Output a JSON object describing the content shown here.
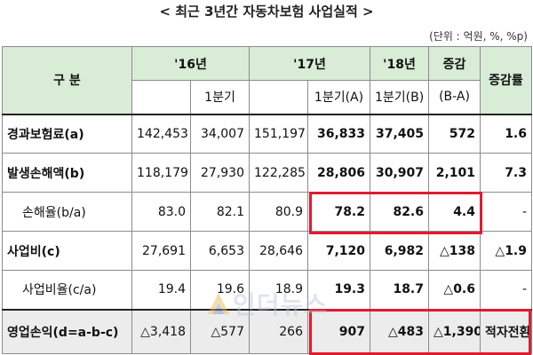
{
  "title": "< 최근 3년간 자동차보험 사업실적 >",
  "unit": "(단위 : 억원, %, %p)",
  "header": {
    "row_label": "구 분",
    "y16": "'16년",
    "y17": "'17년",
    "y18": "'18년",
    "change": "증감",
    "q1": "1분기",
    "q1a": "1분기(A)",
    "q1b": "1분기(B)",
    "diff": "(B-A)",
    "rate": "증감률"
  },
  "rows": [
    {
      "label": "경과보험료(a)",
      "v16": "142,453",
      "v16q1": "34,007",
      "v17": "151,197",
      "v17q1": "36,833",
      "v18q1": "37,405",
      "diff": "572",
      "rate": "1.6"
    },
    {
      "label": "발생손해액(b)",
      "v16": "118,179",
      "v16q1": "27,930",
      "v17": "122,285",
      "v17q1": "28,806",
      "v18q1": "30,907",
      "diff": "2,101",
      "rate": "7.3"
    },
    {
      "label": "손해율(b/a)",
      "v16": "83.0",
      "v16q1": "82.1",
      "v17": "80.9",
      "v17q1": "78.2",
      "v18q1": "82.6",
      "diff": "4.4",
      "rate": "-"
    },
    {
      "label": "사업비(c)",
      "v16": "27,691",
      "v16q1": "6,653",
      "v17": "28,646",
      "v17q1": "7,120",
      "v18q1": "6,982",
      "diff": "△138",
      "rate": "△1.9"
    },
    {
      "label": "사업비율(c/a)",
      "v16": "19.4",
      "v16q1": "19.6",
      "v17": "18.9",
      "v17q1": "19.3",
      "v18q1": "18.7",
      "diff": "△0.6",
      "rate": "-"
    },
    {
      "label": "영업손익(d=a-b-c)",
      "v16": "△3,418",
      "v16q1": "△577",
      "v17": "266",
      "v17q1": "907",
      "v18q1": "△483",
      "diff": "△1,390",
      "rate": "적자전환"
    }
  ],
  "watermark": "인더뉴스",
  "colors": {
    "header_bg": "#d8ecd6",
    "highlight": "#e01b2e",
    "total_bg": "#ececec"
  }
}
